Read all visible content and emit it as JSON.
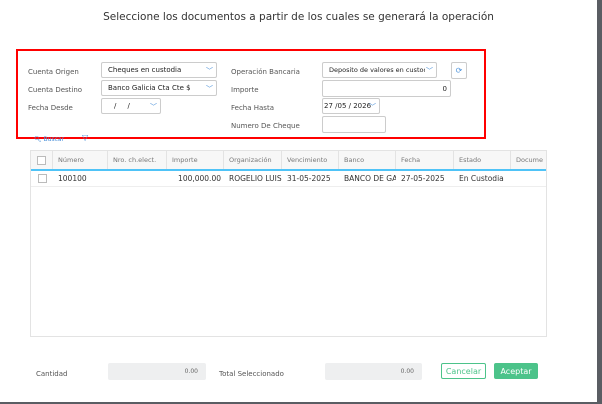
{
  "title": "Seleccione los documentos a partir de los cuales se generará la operación",
  "filters": {
    "cuenta_origen_label": "Cuenta Origen",
    "cuenta_origen_value": "Cheques en custodia",
    "cuenta_destino_label": "Cuenta Destino",
    "cuenta_destino_value": "Banco Galicia Cta Cte $",
    "fecha_desde_label": "Fecha Desde",
    "fecha_desde_value": "/     /",
    "operacion_label": "Operación Bancaria",
    "operacion_value": "Deposito de valores en custodi",
    "importe_label": "Importe",
    "importe_value": "0",
    "fecha_hasta_label": "Fecha Hasta",
    "fecha_hasta_value": "27 /05 / 2026",
    "numero_cheque_label": "Numero De Cheque",
    "numero_cheque_value": ""
  },
  "toolbar": {
    "search_label": "Buscar",
    "search_icon": "search-icon",
    "filter_icon": "filter-icon",
    "refresh_icon": "refresh-icon"
  },
  "table": {
    "columns": [
      "Número",
      "Nro. ch.elect.",
      "Importe",
      "Organización",
      "Vencimiento",
      "Banco",
      "Fecha",
      "Estado",
      "Docume"
    ],
    "rows": [
      [
        "100100",
        "",
        "100,000.00",
        "ROGELIO LUIS",
        "31-05-2025",
        "BANCO DE GAL",
        "27-05-2025",
        "En Custodia",
        ""
      ]
    ]
  },
  "footer": {
    "cantidad_label": "Cantidad",
    "cantidad_value": "0.00",
    "total_label": "Total Seleccionado",
    "total_value": "0.00",
    "cancel_label": "Cancelar",
    "accept_label": "Aceptar"
  },
  "colors": {
    "accent": "#4a90d9",
    "primary_button": "#4cc38a",
    "highlight_box": "#ff0000"
  }
}
